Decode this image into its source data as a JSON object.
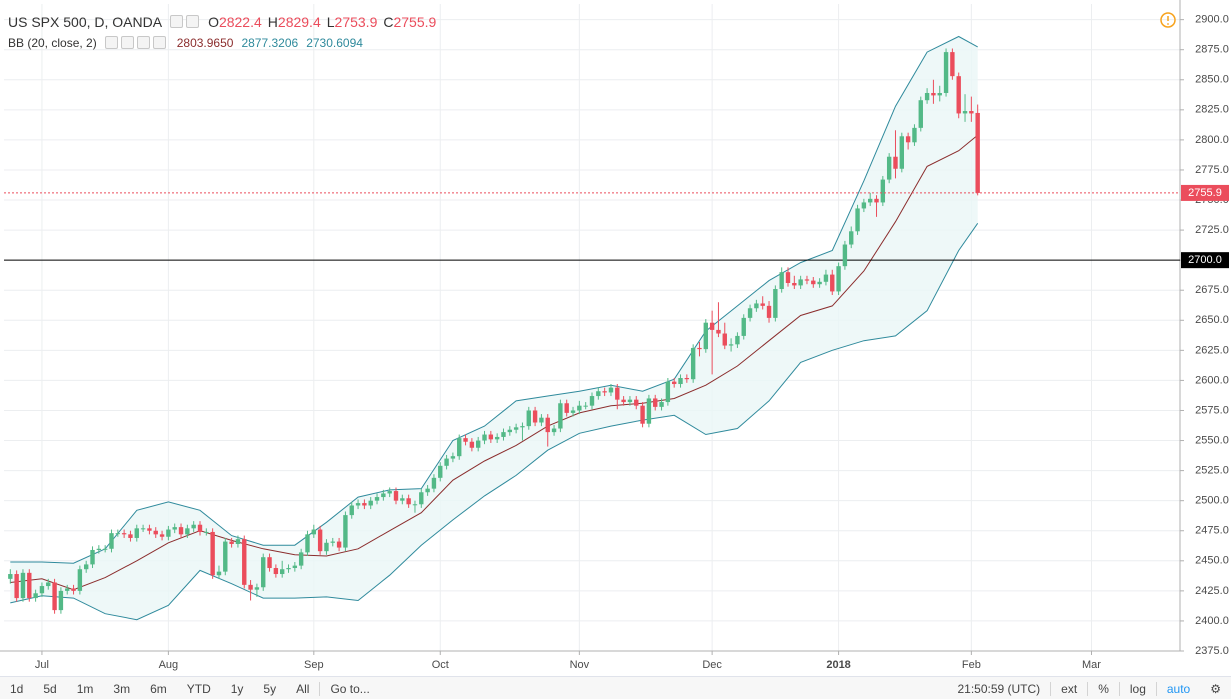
{
  "chart_data": {
    "type": "candlestick",
    "title": "US SPX 500, D, OANDA",
    "ohlc_labels": [
      "O",
      "H",
      "L",
      "C"
    ],
    "up_color": "#53b987",
    "down_color": "#eb4d5c",
    "xlim": [
      -1,
      185
    ],
    "xticks": [
      {
        "value": 5,
        "label": "Jul"
      },
      {
        "value": 25,
        "label": "Aug"
      },
      {
        "value": 48,
        "label": "Sep"
      },
      {
        "value": 68,
        "label": "Oct"
      },
      {
        "value": 90,
        "label": "Nov"
      },
      {
        "value": 111,
        "label": "Dec"
      },
      {
        "value": 131,
        "label": "2018"
      },
      {
        "value": 152,
        "label": "Feb"
      },
      {
        "value": 171,
        "label": "Mar"
      }
    ],
    "ylim": [
      2375,
      2913
    ],
    "yticks": [
      {
        "value": 2375,
        "label": "2375.0"
      },
      {
        "value": 2400,
        "label": "2400.0"
      },
      {
        "value": 2425,
        "label": "2425.0"
      },
      {
        "value": 2450,
        "label": "2450.0"
      },
      {
        "value": 2475,
        "label": "2475.0"
      },
      {
        "value": 2500,
        "label": "2500.0"
      },
      {
        "value": 2525,
        "label": "2525.0"
      },
      {
        "value": 2550,
        "label": "2550.0"
      },
      {
        "value": 2575,
        "label": "2575.0"
      },
      {
        "value": 2600,
        "label": "2600.0"
      },
      {
        "value": 2625,
        "label": "2625.0"
      },
      {
        "value": 2650,
        "label": "2650.0"
      },
      {
        "value": 2675,
        "label": "2675.0"
      },
      {
        "value": 2700,
        "label": "2700.0"
      },
      {
        "value": 2725,
        "label": "2725.0"
      },
      {
        "value": 2750,
        "label": "2750.0"
      },
      {
        "value": 2775,
        "label": "2775.0"
      },
      {
        "value": 2800,
        "label": "2800.0"
      },
      {
        "value": 2825,
        "label": "2825.0"
      },
      {
        "value": 2850,
        "label": "2850.0"
      },
      {
        "value": 2875,
        "label": "2875.0"
      },
      {
        "value": 2900,
        "label": "2900.0"
      }
    ],
    "grid": true,
    "log_scale": false,
    "open": [
      2435,
      2439,
      2419,
      2440,
      2419,
      2423,
      2429,
      2432,
      2409,
      2425,
      2427,
      2425,
      2443,
      2447,
      2459,
      2460,
      2460,
      2473,
      2473,
      2472,
      2469,
      2477,
      2477,
      2475,
      2472,
      2470,
      2476,
      2478,
      2472,
      2477,
      2480,
      2474,
      2474,
      2438,
      2441,
      2466,
      2464,
      2468,
      2430,
      2426,
      2428,
      2453,
      2444,
      2439,
      2443,
      2444,
      2446,
      2457,
      2472,
      2476,
      2458,
      2465,
      2466,
      2461,
      2488,
      2496,
      2498,
      2496,
      2500,
      2503,
      2506,
      2508,
      2500,
      2502,
      2497,
      2497,
      2507,
      2510,
      2519,
      2529,
      2535,
      2537,
      2552,
      2549,
      2544,
      2550,
      2555,
      2551,
      2553,
      2557,
      2559,
      2561,
      2562,
      2575,
      2565,
      2569,
      2557,
      2560,
      2581,
      2573,
      2575,
      2579,
      2579,
      2587,
      2591,
      2590,
      2594,
      2584,
      2582,
      2584,
      2579,
      2564,
      2585,
      2578,
      2582,
      2599,
      2597,
      2602,
      2601,
      2627,
      2626,
      2648,
      2642,
      2639,
      2629,
      2630,
      2637,
      2652,
      2660,
      2664,
      2662,
      2652,
      2676,
      2690,
      2681,
      2679,
      2684,
      2683,
      2680,
      2682,
      2688,
      2674,
      2695,
      2713,
      2724,
      2743,
      2748,
      2751,
      2748,
      2767,
      2786,
      2776,
      2803,
      2798,
      2810,
      2833,
      2839,
      2837,
      2839,
      2873,
      2853,
      2822,
      2824,
      2822.4
    ],
    "high": [
      2443,
      2442,
      2443,
      2443,
      2426,
      2432,
      2435,
      2435,
      2428,
      2430,
      2430,
      2446,
      2450,
      2462,
      2463,
      2463,
      2476,
      2476,
      2476,
      2475,
      2480,
      2480,
      2480,
      2478,
      2475,
      2479,
      2481,
      2481,
      2480,
      2483,
      2483,
      2477,
      2477,
      2446,
      2469,
      2469,
      2471,
      2471,
      2434,
      2431,
      2456,
      2456,
      2447,
      2450,
      2447,
      2449,
      2460,
      2475,
      2480,
      2479,
      2468,
      2469,
      2469,
      2491,
      2499,
      2501,
      2501,
      2503,
      2506,
      2509,
      2511,
      2511,
      2505,
      2505,
      2500,
      2510,
      2513,
      2522,
      2532,
      2538,
      2540,
      2555,
      2555,
      2552,
      2553,
      2558,
      2558,
      2556,
      2560,
      2562,
      2564,
      2565,
      2578,
      2578,
      2572,
      2572,
      2563,
      2584,
      2584,
      2578,
      2583,
      2582,
      2590,
      2594,
      2594,
      2597,
      2597,
      2587,
      2587,
      2587,
      2582,
      2588,
      2588,
      2585,
      2602,
      2602,
      2605,
      2605,
      2630,
      2632,
      2651,
      2658,
      2665,
      2648,
      2635,
      2640,
      2655,
      2663,
      2667,
      2670,
      2666,
      2679,
      2694,
      2694,
      2687,
      2687,
      2687,
      2686,
      2685,
      2692,
      2692,
      2698,
      2716,
      2728,
      2746,
      2751,
      2756,
      2754,
      2770,
      2789,
      2808,
      2806,
      2806,
      2813,
      2836,
      2843,
      2850,
      2845,
      2876,
      2876,
      2856,
      2838,
      2836,
      2829.4
    ],
    "low": [
      2431,
      2416,
      2416,
      2416,
      2416,
      2420,
      2426,
      2406,
      2406,
      2422,
      2422,
      2422,
      2440,
      2444,
      2456,
      2457,
      2457,
      2470,
      2469,
      2466,
      2466,
      2474,
      2472,
      2469,
      2467,
      2467,
      2473,
      2469,
      2469,
      2474,
      2471,
      2471,
      2435,
      2435,
      2438,
      2461,
      2461,
      2427,
      2417,
      2420,
      2425,
      2441,
      2436,
      2436,
      2440,
      2441,
      2443,
      2454,
      2469,
      2455,
      2455,
      2462,
      2458,
      2458,
      2485,
      2493,
      2493,
      2493,
      2497,
      2500,
      2503,
      2497,
      2497,
      2494,
      2490,
      2494,
      2504,
      2507,
      2516,
      2526,
      2532,
      2534,
      2546,
      2541,
      2541,
      2547,
      2548,
      2548,
      2550,
      2554,
      2556,
      2550,
      2559,
      2562,
      2562,
      2545,
      2554,
      2557,
      2570,
      2570,
      2572,
      2576,
      2576,
      2584,
      2587,
      2587,
      2576,
      2579,
      2579,
      2576,
      2561,
      2561,
      2575,
      2575,
      2579,
      2594,
      2594,
      2598,
      2598,
      2620,
      2623,
      2605,
      2636,
      2626,
      2624,
      2627,
      2634,
      2649,
      2657,
      2659,
      2648,
      2649,
      2673,
      2678,
      2676,
      2676,
      2680,
      2677,
      2677,
      2679,
      2671,
      2671,
      2692,
      2710,
      2721,
      2740,
      2745,
      2736,
      2745,
      2764,
      2768,
      2773,
      2792,
      2795,
      2807,
      2830,
      2830,
      2832,
      2836,
      2850,
      2818,
      2815,
      2815,
      2753.9
    ],
    "close": [
      2439,
      2419,
      2440,
      2419,
      2423,
      2429,
      2432,
      2409,
      2425,
      2427,
      2425,
      2443,
      2447,
      2459,
      2460,
      2460,
      2473,
      2473,
      2472,
      2469,
      2477,
      2477,
      2475,
      2472,
      2470,
      2476,
      2478,
      2472,
      2477,
      2480,
      2474,
      2474,
      2438,
      2441,
      2466,
      2464,
      2468,
      2430,
      2426,
      2428,
      2453,
      2444,
      2439,
      2443,
      2444,
      2446,
      2457,
      2472,
      2476,
      2458,
      2465,
      2466,
      2461,
      2488,
      2496,
      2498,
      2496,
      2500,
      2503,
      2506,
      2508,
      2500,
      2502,
      2497,
      2497,
      2507,
      2510,
      2519,
      2529,
      2535,
      2537,
      2552,
      2549,
      2544,
      2550,
      2555,
      2551,
      2553,
      2557,
      2559,
      2561,
      2562,
      2575,
      2565,
      2569,
      2557,
      2560,
      2581,
      2573,
      2575,
      2579,
      2579,
      2587,
      2591,
      2590,
      2594,
      2584,
      2582,
      2584,
      2579,
      2564,
      2585,
      2578,
      2582,
      2599,
      2597,
      2602,
      2601,
      2627,
      2626,
      2648,
      2642,
      2639,
      2629,
      2630,
      2637,
      2652,
      2660,
      2664,
      2662,
      2652,
      2676,
      2690,
      2681,
      2679,
      2684,
      2683,
      2680,
      2682,
      2688,
      2674,
      2695,
      2713,
      2724,
      2743,
      2748,
      2751,
      2748,
      2767,
      2786,
      2776,
      2803,
      2798,
      2810,
      2833,
      2839,
      2837,
      2839,
      2873,
      2853,
      2822,
      2824,
      2822,
      2755.9
    ],
    "indicator": {
      "name": "BB (20, close, 2)",
      "value_labels": [
        "2803.9650",
        "2877.3206",
        "2730.6094"
      ]
    },
    "bb": {
      "x": [
        0,
        5,
        10,
        15,
        20,
        25,
        30,
        35,
        40,
        45,
        50,
        55,
        60,
        65,
        70,
        75,
        80,
        85,
        90,
        95,
        100,
        105,
        110,
        115,
        120,
        125,
        130,
        135,
        140,
        145,
        150,
        153
      ],
      "basis": [
        2432,
        2435,
        2426,
        2436,
        2450,
        2465,
        2475,
        2467,
        2460,
        2455,
        2454,
        2460,
        2475,
        2490,
        2517,
        2533,
        2546,
        2562,
        2573,
        2579,
        2581,
        2585,
        2596,
        2612,
        2633,
        2654,
        2662,
        2691,
        2732,
        2778,
        2791,
        2803.965
      ],
      "upper": [
        2449,
        2449,
        2448,
        2460,
        2492,
        2499,
        2492,
        2471,
        2463,
        2463,
        2482,
        2503,
        2509,
        2510,
        2550,
        2562,
        2583,
        2587,
        2591,
        2596,
        2591,
        2601,
        2641,
        2662,
        2683,
        2698,
        2708,
        2766,
        2828,
        2873,
        2886,
        2877.3206
      ],
      "lower": [
        2415,
        2421,
        2419,
        2406,
        2401,
        2413,
        2442,
        2431,
        2419,
        2419,
        2420,
        2417,
        2438,
        2463,
        2484,
        2504,
        2521,
        2542,
        2556,
        2562,
        2567,
        2571,
        2555,
        2560,
        2583,
        2615,
        2625,
        2633,
        2637,
        2658,
        2708,
        2730.6094
      ],
      "basis_color": "#8b2d2d",
      "band_color": "#2f8a9c",
      "fill": "#eaf6f6"
    },
    "hline": {
      "value": 2700,
      "label": "2700.0",
      "color": "#000000"
    }
  },
  "toolbar": {
    "ranges": [
      "1d",
      "5d",
      "1m",
      "3m",
      "6m",
      "YTD",
      "1y",
      "5y",
      "All"
    ],
    "goto": "Go to...",
    "time": "21:50:59 (UTC)",
    "options": [
      "ext",
      "%",
      "log",
      "auto"
    ]
  }
}
